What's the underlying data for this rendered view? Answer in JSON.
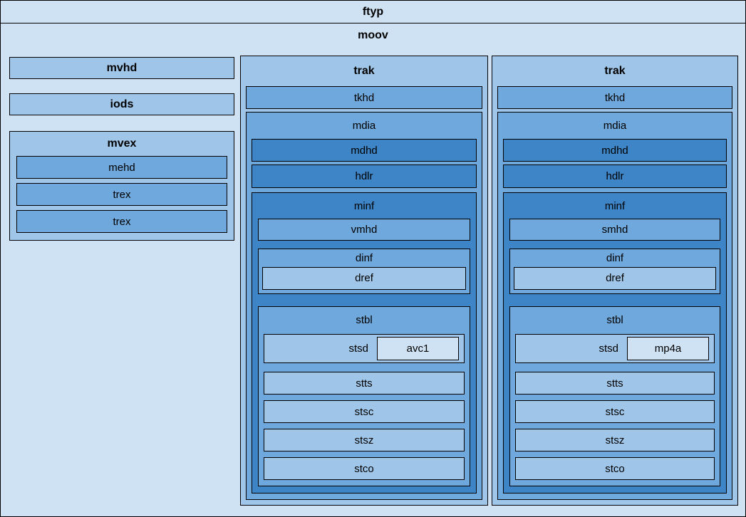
{
  "colors": {
    "level1": "#cfe2f3",
    "level2": "#9fc5e8",
    "level3": "#6fa8dc",
    "level4": "#3d85c6",
    "border": "#000000"
  },
  "ftyp": {
    "label": "ftyp"
  },
  "moov": {
    "label": "moov",
    "mvhd": {
      "label": "mvhd"
    },
    "iods": {
      "label": "iods"
    },
    "mvex": {
      "label": "mvex",
      "mehd": {
        "label": "mehd"
      },
      "trex1": {
        "label": "trex"
      },
      "trex2": {
        "label": "trex"
      }
    },
    "traks": [
      {
        "label": "trak",
        "tkhd": {
          "label": "tkhd"
        },
        "mdia": {
          "label": "mdia",
          "mdhd": {
            "label": "mdhd"
          },
          "hdlr": {
            "label": "hdlr"
          },
          "minf": {
            "label": "minf",
            "media_header": {
              "label": "vmhd"
            },
            "dinf": {
              "label": "dinf",
              "dref": {
                "label": "dref"
              }
            },
            "stbl": {
              "label": "stbl",
              "stsd": {
                "label": "stsd",
                "entry": {
                  "label": "avc1"
                }
              },
              "stts": {
                "label": "stts"
              },
              "stsc": {
                "label": "stsc"
              },
              "stsz": {
                "label": "stsz"
              },
              "stco": {
                "label": "stco"
              }
            }
          }
        }
      },
      {
        "label": "trak",
        "tkhd": {
          "label": "tkhd"
        },
        "mdia": {
          "label": "mdia",
          "mdhd": {
            "label": "mdhd"
          },
          "hdlr": {
            "label": "hdlr"
          },
          "minf": {
            "label": "minf",
            "media_header": {
              "label": "smhd"
            },
            "dinf": {
              "label": "dinf",
              "dref": {
                "label": "dref"
              }
            },
            "stbl": {
              "label": "stbl",
              "stsd": {
                "label": "stsd",
                "entry": {
                  "label": "mp4a"
                }
              },
              "stts": {
                "label": "stts"
              },
              "stsc": {
                "label": "stsc"
              },
              "stsz": {
                "label": "stsz"
              },
              "stco": {
                "label": "stco"
              }
            }
          }
        }
      }
    ]
  }
}
